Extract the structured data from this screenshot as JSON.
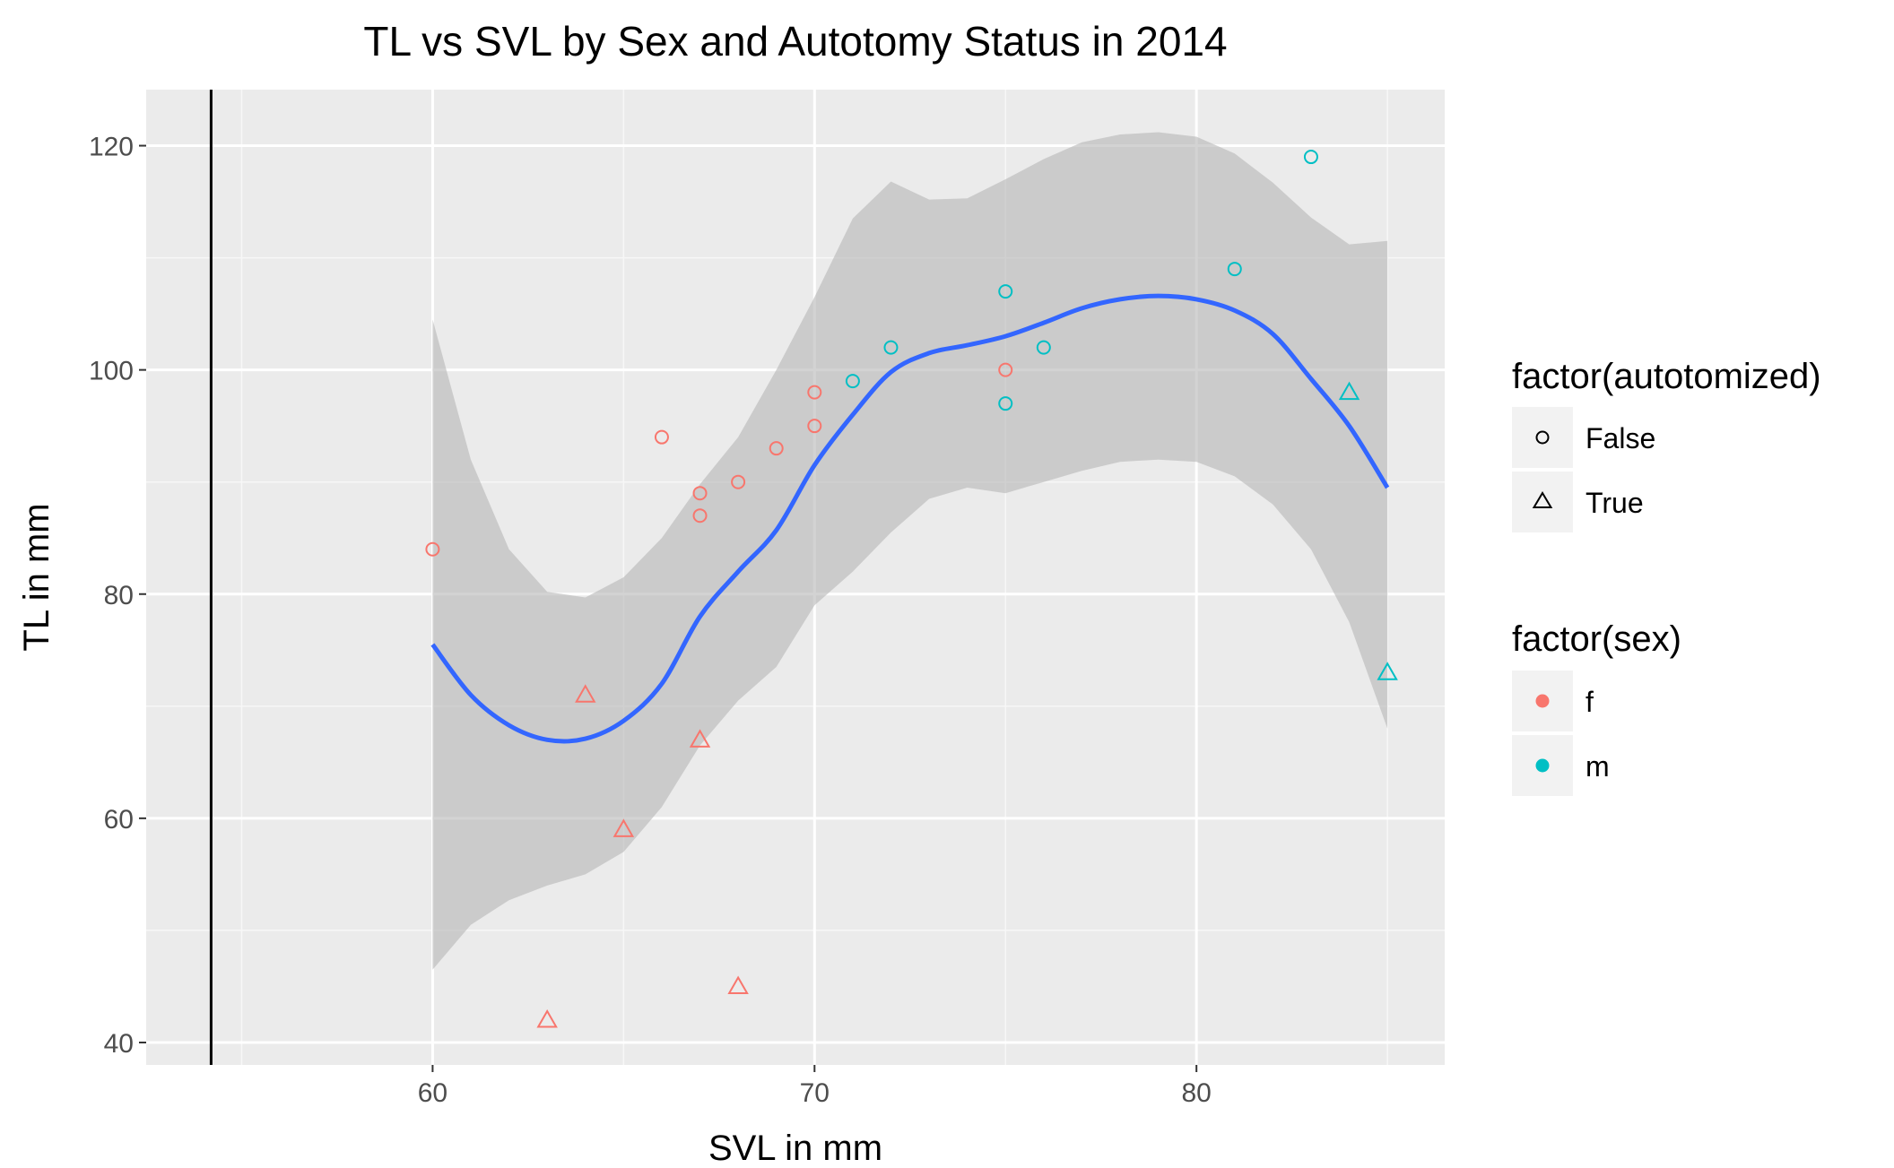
{
  "chart_data": {
    "type": "scatter",
    "title": "TL vs SVL by Sex and Autotomy Status in 2014",
    "xlabel": "SVL in mm",
    "ylabel": "TL in mm",
    "xlim": [
      52.5,
      86.5
    ],
    "ylim": [
      38,
      125
    ],
    "x_ticks": [
      60,
      70,
      80
    ],
    "y_ticks": [
      40,
      60,
      80,
      100,
      120
    ],
    "x_minor": [
      55,
      65,
      75,
      85
    ],
    "y_minor": [
      50,
      70,
      90,
      110
    ],
    "vline_x": 54.2,
    "grid": true,
    "colors": {
      "f": "#F8766D",
      "m": "#00BFC4",
      "smooth": "#3366FF",
      "band": "#b8b8b8",
      "panel": "#EBEBEB"
    },
    "legend": {
      "position": "right",
      "shape_title": "factor(autotomized)",
      "shape_entries": [
        {
          "label": "False",
          "shape": "circle"
        },
        {
          "label": "True",
          "shape": "triangle"
        }
      ],
      "color_title": "factor(sex)",
      "color_entries": [
        {
          "label": "f",
          "color": "#F8766D"
        },
        {
          "label": "m",
          "color": "#00BFC4"
        }
      ]
    },
    "points": [
      {
        "x": 60,
        "y": 84,
        "sex": "f",
        "autotomized": "False"
      },
      {
        "x": 66,
        "y": 94,
        "sex": "f",
        "autotomized": "False"
      },
      {
        "x": 67,
        "y": 89,
        "sex": "f",
        "autotomized": "False"
      },
      {
        "x": 67,
        "y": 87,
        "sex": "f",
        "autotomized": "False"
      },
      {
        "x": 68,
        "y": 90,
        "sex": "f",
        "autotomized": "False"
      },
      {
        "x": 69,
        "y": 93,
        "sex": "f",
        "autotomized": "False"
      },
      {
        "x": 70,
        "y": 98,
        "sex": "f",
        "autotomized": "False"
      },
      {
        "x": 70,
        "y": 95,
        "sex": "f",
        "autotomized": "False"
      },
      {
        "x": 75,
        "y": 100,
        "sex": "f",
        "autotomized": "False"
      },
      {
        "x": 63,
        "y": 42,
        "sex": "f",
        "autotomized": "True"
      },
      {
        "x": 64,
        "y": 71,
        "sex": "f",
        "autotomized": "True"
      },
      {
        "x": 65,
        "y": 59,
        "sex": "f",
        "autotomized": "True"
      },
      {
        "x": 67,
        "y": 67,
        "sex": "f",
        "autotomized": "True"
      },
      {
        "x": 68,
        "y": 45,
        "sex": "f",
        "autotomized": "True"
      },
      {
        "x": 71,
        "y": 99,
        "sex": "m",
        "autotomized": "False"
      },
      {
        "x": 72,
        "y": 102,
        "sex": "m",
        "autotomized": "False"
      },
      {
        "x": 75,
        "y": 107,
        "sex": "m",
        "autotomized": "False"
      },
      {
        "x": 75,
        "y": 97,
        "sex": "m",
        "autotomized": "False"
      },
      {
        "x": 76,
        "y": 102,
        "sex": "m",
        "autotomized": "False"
      },
      {
        "x": 81,
        "y": 109,
        "sex": "m",
        "autotomized": "False"
      },
      {
        "x": 83,
        "y": 119,
        "sex": "m",
        "autotomized": "False"
      },
      {
        "x": 84,
        "y": 98,
        "sex": "m",
        "autotomized": "True"
      },
      {
        "x": 85,
        "y": 73,
        "sex": "m",
        "autotomized": "True"
      }
    ],
    "smooth": {
      "x": [
        60,
        61,
        62,
        63,
        64,
        65,
        66,
        67,
        68,
        69,
        70,
        71,
        72,
        73,
        74,
        75,
        76,
        77,
        78,
        79,
        80,
        81,
        82,
        83,
        84,
        85
      ],
      "y": [
        75.5,
        71,
        68.3,
        67,
        67.1,
        68.7,
        72,
        78,
        82,
        85.7,
        91.5,
        96,
        99.8,
        101.5,
        102.2,
        103,
        104.2,
        105.5,
        106.3,
        106.6,
        106.3,
        105.3,
        103.2,
        99.2,
        95,
        89.5
      ],
      "lower": [
        46.5,
        50.5,
        52.7,
        54,
        55,
        57,
        61,
        66.5,
        70.5,
        73.5,
        79,
        82,
        85.5,
        88.5,
        89.5,
        89,
        90,
        91,
        91.8,
        92,
        91.8,
        90.5,
        88,
        84,
        77.5,
        68
      ],
      "upper": [
        104.5,
        92,
        84,
        80.2,
        79.7,
        81.5,
        85,
        89.8,
        94,
        100,
        106.5,
        113.5,
        116.8,
        115.2,
        115.3,
        117,
        118.8,
        120.3,
        121,
        121.2,
        120.8,
        119.3,
        116.7,
        113.6,
        111.2,
        111.5
      ]
    }
  }
}
